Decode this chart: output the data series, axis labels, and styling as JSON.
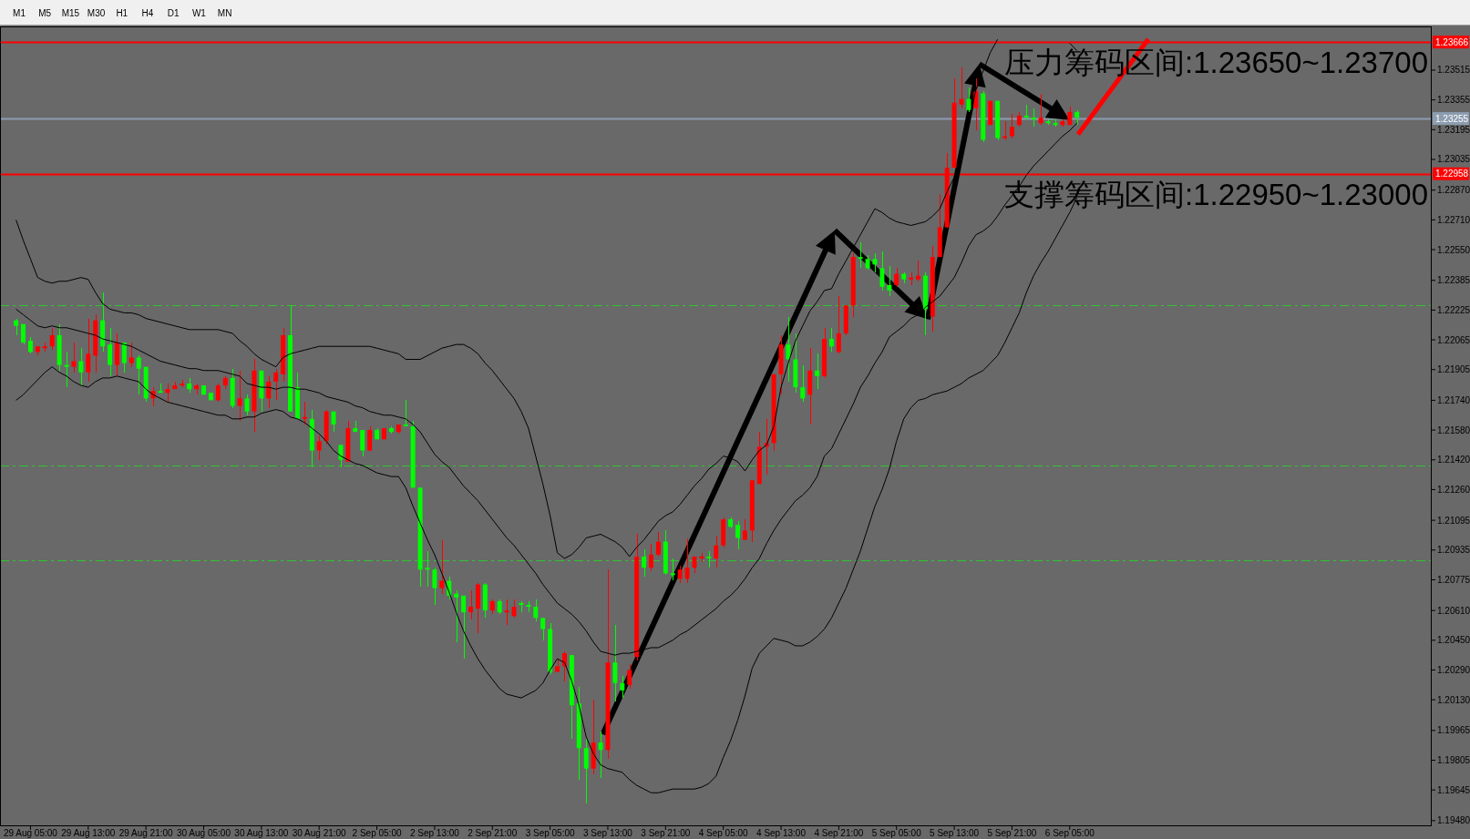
{
  "chart_data": {
    "type": "candlestick",
    "categories": [
      null,
      null,
      "29 Aug 05:00",
      null,
      null,
      null,
      null,
      null,
      null,
      null,
      "29 Aug 13:00",
      null,
      null,
      null,
      null,
      null,
      null,
      null,
      "29 Aug 21:00",
      null,
      null,
      null,
      null,
      null,
      null,
      null,
      "30 Aug 05:00",
      null,
      null,
      null,
      null,
      null,
      null,
      null,
      "30 Aug 13:00",
      null,
      null,
      null,
      null,
      null,
      null,
      null,
      "30 Aug 21:00",
      null,
      null,
      null,
      null,
      null,
      null,
      null,
      "2 Sep 05:00",
      null,
      null,
      null,
      null,
      null,
      null,
      null,
      "2 Sep 13:00",
      null,
      null,
      null,
      null,
      null,
      null,
      null,
      "2 Sep 21:00",
      null,
      null,
      null,
      null,
      null,
      null,
      null,
      "3 Sep 05:00",
      null,
      null,
      null,
      null,
      null,
      null,
      null,
      "3 Sep 13:00",
      null,
      null,
      null,
      null,
      null,
      null,
      null,
      "3 Sep 21:00",
      null,
      null,
      null,
      null,
      null,
      null,
      null,
      "4 Sep 05:00",
      null,
      null,
      null,
      null,
      null,
      null,
      null,
      "4 Sep 13:00",
      null,
      null,
      null,
      null,
      null,
      null,
      null,
      "4 Sep 21:00",
      null,
      null,
      null,
      null,
      null,
      null,
      null,
      "5 Sep 05:00",
      null,
      null,
      null,
      null,
      null,
      null,
      null,
      "5 Sep 13:00",
      null,
      null,
      null,
      null,
      null,
      null,
      null,
      "5 Sep 21:00",
      null,
      null,
      null,
      null,
      null,
      null,
      null,
      "6 Sep 05:00",
      null
    ],
    "ohlc": [
      [
        1.2217,
        1.2218,
        1.2209,
        1.2214
      ],
      [
        1.2215,
        1.2215,
        1.2204,
        1.2205
      ],
      [
        1.2206,
        1.2208,
        1.2199,
        1.22
      ],
      [
        1.22,
        1.2203,
        1.2198,
        1.2203
      ],
      [
        1.2202,
        1.2205,
        1.22,
        1.2203
      ],
      [
        1.2203,
        1.2213,
        1.2201,
        1.2209
      ],
      [
        1.2209,
        1.2215,
        1.219,
        1.2193
      ],
      [
        1.2193,
        1.22,
        1.2181,
        1.2192
      ],
      [
        1.2192,
        1.2205,
        1.2189,
        1.2195
      ],
      [
        1.2195,
        1.2202,
        1.2182,
        1.2189
      ],
      [
        1.2189,
        1.2218,
        1.2184,
        1.2199
      ],
      [
        1.2198,
        1.222,
        1.2189,
        1.2217
      ],
      [
        1.2217,
        1.2232,
        1.22,
        1.2203
      ],
      [
        1.2204,
        1.2213,
        1.2187,
        1.2193
      ],
      [
        1.2193,
        1.221,
        1.2187,
        1.2205
      ],
      [
        1.2205,
        1.2205,
        1.2189,
        1.2194
      ],
      [
        1.2194,
        1.2205,
        1.2192,
        1.2197
      ],
      [
        1.2197,
        1.2198,
        1.2177,
        1.2191
      ],
      [
        1.2192,
        1.2192,
        1.2173,
        1.2175
      ],
      [
        1.2175,
        1.2181,
        1.2171,
        1.2179
      ],
      [
        1.2179,
        1.2183,
        1.2178,
        1.2178
      ],
      [
        1.2178,
        1.2183,
        1.2173,
        1.218
      ],
      [
        1.218,
        1.2184,
        1.218,
        1.2182
      ],
      [
        1.2182,
        1.2185,
        1.2181,
        1.2183
      ],
      [
        1.2183,
        1.2186,
        1.2178,
        1.218
      ],
      [
        1.218,
        1.2183,
        1.2177,
        1.2182
      ],
      [
        1.2182,
        1.2182,
        1.2177,
        1.2177
      ],
      [
        1.2178,
        1.2178,
        1.2174,
        1.2174
      ],
      [
        1.2174,
        1.2183,
        1.2173,
        1.2182
      ],
      [
        1.2182,
        1.2187,
        1.218,
        1.2186
      ],
      [
        1.2186,
        1.2191,
        1.217,
        1.2171
      ],
      [
        1.2171,
        1.219,
        1.2163,
        1.2175
      ],
      [
        1.2175,
        1.2177,
        1.2166,
        1.2168
      ],
      [
        1.2168,
        1.2196,
        1.2157,
        1.219
      ],
      [
        1.219,
        1.219,
        1.2168,
        1.2175
      ],
      [
        1.2175,
        1.2187,
        1.217,
        1.2184
      ],
      [
        1.2184,
        1.2191,
        1.2174,
        1.2189
      ],
      [
        1.2188,
        1.2213,
        1.2184,
        1.2209
      ],
      [
        1.2209,
        1.2225,
        1.2168,
        1.2168
      ],
      [
        1.2181,
        1.2189,
        1.2164,
        1.2164
      ],
      [
        1.2164,
        1.2173,
        1.2161,
        1.2165
      ],
      [
        1.2164,
        1.2169,
        1.2138,
        1.2147
      ],
      [
        1.2147,
        1.2155,
        1.2142,
        1.2152
      ],
      [
        1.2152,
        1.2169,
        1.215,
        1.2168
      ],
      [
        1.2168,
        1.2168,
        1.2157,
        1.2161
      ],
      [
        1.215,
        1.215,
        1.2138,
        1.2142
      ],
      [
        1.2141,
        1.2163,
        1.2141,
        1.2159
      ],
      [
        1.2159,
        1.2163,
        1.2157,
        1.2157
      ],
      [
        1.2158,
        1.2158,
        1.2144,
        1.2147
      ],
      [
        1.2147,
        1.216,
        1.2147,
        1.2158
      ],
      [
        1.2158,
        1.2159,
        1.2153,
        1.2153
      ],
      [
        1.2153,
        1.2159,
        1.2153,
        1.2159
      ],
      [
        1.2159,
        1.216,
        1.2156,
        1.2157
      ],
      [
        1.2157,
        1.2161,
        1.2156,
        1.2161
      ],
      [
        1.2161,
        1.2174,
        1.216,
        1.216
      ],
      [
        1.216,
        1.2163,
        1.2127,
        1.2127
      ],
      [
        1.2127,
        1.2127,
        1.2074,
        1.2083
      ],
      [
        1.2084,
        1.2093,
        1.2074,
        1.2083
      ],
      [
        1.2083,
        1.2084,
        1.2064,
        1.2073
      ],
      [
        1.2073,
        1.2099,
        1.207,
        1.2077
      ],
      [
        1.2077,
        1.2079,
        1.2067,
        1.2069
      ],
      [
        1.207,
        1.2072,
        1.2044,
        1.2068
      ],
      [
        1.2069,
        1.2069,
        1.2035,
        1.206
      ],
      [
        1.206,
        1.2072,
        1.2056,
        1.2063
      ],
      [
        1.2062,
        1.2076,
        1.2049,
        1.2075
      ],
      [
        1.2075,
        1.2076,
        1.2057,
        1.2061
      ],
      [
        1.2061,
        1.2067,
        1.2059,
        1.2066
      ],
      [
        1.2066,
        1.2067,
        1.2059,
        1.206
      ],
      [
        1.206,
        1.2067,
        1.2053,
        1.2061
      ],
      [
        1.2058,
        1.2067,
        1.2057,
        1.2063
      ],
      [
        1.2065,
        1.2066,
        1.206,
        1.2064
      ],
      [
        1.2064,
        1.2066,
        1.206,
        1.2063
      ],
      [
        1.2063,
        1.2067,
        1.2055,
        1.2057
      ],
      [
        1.2057,
        1.2057,
        1.2045,
        1.2051
      ],
      [
        1.2051,
        1.2054,
        1.2027,
        1.2028
      ],
      [
        1.2028,
        1.2035,
        1.2028,
        1.2031
      ],
      [
        1.2031,
        1.2039,
        1.2023,
        1.2038
      ],
      [
        1.2037,
        1.2037,
        1.1992,
        1.201
      ],
      [
        1.2011,
        1.202,
        1.197,
        1.1987
      ],
      [
        1.1987,
        1.1992,
        1.1957,
        1.1976
      ],
      [
        1.1976,
        1.2013,
        1.1973,
        1.199
      ],
      [
        1.199,
        1.1996,
        1.1971,
        1.1986
      ],
      [
        1.1986,
        1.2083,
        1.1981,
        1.2033
      ],
      [
        1.2033,
        1.2053,
        1.2012,
        1.2022
      ],
      [
        1.2022,
        1.2026,
        1.2014,
        1.2018
      ],
      [
        1.2021,
        1.2032,
        1.2019,
        1.2029
      ],
      [
        1.2036,
        1.2102,
        1.2034,
        1.209
      ],
      [
        1.209,
        1.2094,
        1.2079,
        1.2084
      ],
      [
        1.2084,
        1.2097,
        1.2082,
        1.2091
      ],
      [
        1.2091,
        1.2103,
        1.209,
        1.2098
      ],
      [
        1.2098,
        1.2104,
        1.208,
        1.2081
      ],
      [
        1.2081,
        1.2089,
        1.2077,
        1.208
      ],
      [
        1.2078,
        1.2085,
        1.2076,
        1.2083
      ],
      [
        1.2078,
        1.21,
        1.2076,
        1.2084
      ],
      [
        1.2084,
        1.209,
        1.2081,
        1.209
      ],
      [
        1.2089,
        1.2092,
        1.2087,
        1.209
      ],
      [
        1.209,
        1.2093,
        1.2084,
        1.2089
      ],
      [
        1.2089,
        1.2101,
        1.2084,
        1.2096
      ],
      [
        1.2096,
        1.2111,
        1.2095,
        1.211
      ],
      [
        1.211,
        1.2111,
        1.2105,
        1.2106
      ],
      [
        1.2107,
        1.2109,
        1.2094,
        1.21
      ],
      [
        1.2099,
        1.211,
        1.2099,
        1.2104
      ],
      [
        1.2104,
        1.2131,
        1.2098,
        1.2131
      ],
      [
        1.2129,
        1.2157,
        1.2129,
        1.2149
      ],
      [
        1.2149,
        1.2164,
        1.2134,
        1.2151
      ],
      [
        1.2151,
        1.2188,
        1.2147,
        1.2188
      ],
      [
        1.2188,
        1.2209,
        1.2177,
        1.2204
      ],
      [
        1.2204,
        1.2219,
        1.2184,
        1.2196
      ],
      [
        1.2196,
        1.221,
        1.2178,
        1.2181
      ],
      [
        1.2181,
        1.2193,
        1.2173,
        1.2175
      ],
      [
        1.2177,
        1.2202,
        1.2161,
        1.219
      ],
      [
        1.219,
        1.2199,
        1.218,
        1.2187
      ],
      [
        1.2187,
        1.2213,
        1.2186,
        1.2207
      ],
      [
        1.2207,
        1.2213,
        1.22,
        1.2203
      ],
      [
        1.22,
        1.223,
        1.2199,
        1.221
      ],
      [
        1.221,
        1.2225,
        1.2209,
        1.2225
      ],
      [
        1.2225,
        1.2253,
        1.2219,
        1.2251
      ],
      [
        1.2251,
        1.2259,
        1.2245,
        1.225
      ],
      [
        1.225,
        1.2252,
        1.2244,
        1.2245
      ],
      [
        1.225,
        1.2253,
        1.2243,
        1.2247
      ],
      [
        1.2245,
        1.2254,
        1.2233,
        1.2235
      ],
      [
        1.2236,
        1.2246,
        1.223,
        1.2233
      ],
      [
        1.2236,
        1.2245,
        1.2235,
        1.2242
      ],
      [
        1.2242,
        1.2243,
        1.2237,
        1.2239
      ],
      [
        1.2239,
        1.2243,
        1.2236,
        1.224
      ],
      [
        1.2239,
        1.2249,
        1.2238,
        1.2241
      ],
      [
        1.2241,
        1.2243,
        1.2209,
        1.2223
      ],
      [
        1.2219,
        1.2257,
        1.2211,
        1.2251
      ],
      [
        1.2251,
        1.2285,
        1.2251,
        1.2267
      ],
      [
        1.2267,
        1.2307,
        1.2267,
        1.2299
      ],
      [
        1.2299,
        1.2347,
        1.2299,
        1.2334
      ],
      [
        1.2333,
        1.2353,
        1.2331,
        1.2336
      ],
      [
        1.2336,
        1.2342,
        1.2329,
        1.233
      ],
      [
        1.2331,
        1.2347,
        1.2319,
        1.234
      ],
      [
        1.2339,
        1.234,
        1.2313,
        1.2314
      ],
      [
        1.2322,
        1.2335,
        1.2322,
        1.2335
      ],
      [
        1.2335,
        1.2335,
        1.2314,
        1.2315
      ],
      [
        1.2315,
        1.2324,
        1.2314,
        1.2316
      ],
      [
        1.2316,
        1.2328,
        1.2315,
        1.2321
      ],
      [
        1.2322,
        1.2329,
        1.2321,
        1.2327
      ],
      [
        1.2327,
        1.2333,
        1.2325,
        1.2326
      ],
      [
        1.2326,
        1.2331,
        1.2321,
        1.2325
      ],
      [
        1.2323,
        1.2339,
        1.2322,
        1.2326
      ],
      [
        1.2324,
        1.2325,
        1.2322,
        1.2323
      ],
      [
        1.2323,
        1.2325,
        1.2321,
        1.2322
      ],
      [
        1.2322,
        1.2325,
        1.2321,
        1.2324
      ],
      [
        1.2322,
        1.2332,
        1.2322,
        1.2329
      ],
      [
        1.2329,
        1.233,
        1.2322,
        1.2326
      ]
    ],
    "colors": [
      "#00ff00",
      "#00ff00",
      "#00ff00",
      "#ff0000",
      "#ff0000",
      "#ff0000",
      "#00ff00",
      "#00ff00",
      "#ff0000",
      "#00ff00",
      "#ff0000",
      "#ff0000",
      "#00ff00",
      "#00ff00",
      "#ff0000",
      "#00ff00",
      "#ff0000",
      "#00ff00",
      "#00ff00",
      "#ff0000",
      "#00ff00",
      "#ff0000",
      "#ff0000",
      "#ff0000",
      "#00ff00",
      "#ff0000",
      "#00ff00",
      "#00ff00",
      "#ff0000",
      "#ff0000",
      "#00ff00",
      "#ff0000",
      "#00ff00",
      "#ff0000",
      "#00ff00",
      "#ff0000",
      "#ff0000",
      "#ff0000",
      "#00ff00",
      "#00ff00",
      "#ff0000",
      "#00ff00",
      "#ff0000",
      "#ff0000",
      "#00ff00",
      "#00ff00",
      "#ff0000",
      "#00ff00",
      "#00ff00",
      "#ff0000",
      "#00ff00",
      "#ff0000",
      "#00ff00",
      "#ff0000",
      "#00ff00",
      "#00ff00",
      "#00ff00",
      "#00ff00",
      "#00ff00",
      "#ff0000",
      "#00ff00",
      "#00ff00",
      "#00ff00",
      "#ff0000",
      "#ff0000",
      "#00ff00",
      "#ff0000",
      "#00ff00",
      "#ff0000",
      "#ff0000",
      "#00ff00",
      "#00ff00",
      "#00ff00",
      "#00ff00",
      "#00ff00",
      "#ff0000",
      "#ff0000",
      "#00ff00",
      "#00ff00",
      "#00ff00",
      "#ff0000",
      "#00ff00",
      "#ff0000",
      "#00ff00",
      "#00ff00",
      "#ff0000",
      "#ff0000",
      "#00ff00",
      "#ff0000",
      "#ff0000",
      "#00ff00",
      "#00ff00",
      "#ff0000",
      "#ff0000",
      "#ff0000",
      "#ff0000",
      "#00ff00",
      "#ff0000",
      "#ff0000",
      "#00ff00",
      "#00ff00",
      "#ff0000",
      "#ff0000",
      "#ff0000",
      "#ff0000",
      "#ff0000",
      "#ff0000",
      "#00ff00",
      "#00ff00",
      "#00ff00",
      "#ff0000",
      "#00ff00",
      "#ff0000",
      "#00ff00",
      "#ff0000",
      "#ff0000",
      "#ff0000",
      "#00ff00",
      "#00ff00",
      "#00ff00",
      "#00ff00",
      "#00ff00",
      "#ff0000",
      "#00ff00",
      "#ff0000",
      "#ff0000",
      "#00ff00",
      "#ff0000",
      "#ff0000",
      "#ff0000",
      "#ff0000",
      "#ff0000",
      "#00ff00",
      "#ff0000",
      "#00ff00",
      "#ff0000",
      "#00ff00",
      "#ff0000",
      "#ff0000",
      "#ff0000",
      "#00ff00",
      "#00ff00",
      "#ff0000",
      "#00ff00",
      "#00ff00",
      "#ff0000",
      "#ff0000",
      "#00ff00"
    ],
    "series": [
      {
        "type": "line",
        "color": "#000000",
        "values": [
          1.2271,
          1.226,
          1.225,
          1.224,
          1.2238,
          1.2237,
          1.2238,
          1.2238,
          1.2239,
          1.224,
          1.2239,
          1.2232,
          1.2226,
          1.2223,
          1.2222,
          1.2221,
          1.2221,
          1.222,
          1.2218,
          1.2217,
          1.2216,
          1.2215,
          1.2214,
          1.2213,
          1.2212,
          1.2212,
          1.2212,
          1.2212,
          1.2212,
          1.2211,
          1.221,
          1.2206,
          1.2203,
          1.2199,
          1.2196,
          1.2194,
          1.2192,
          1.2197,
          1.2199,
          1.22,
          1.2201,
          1.2202,
          1.2203,
          1.2203,
          1.2203,
          1.2203,
          1.2203,
          1.2203,
          1.2203,
          1.2203,
          1.2202,
          1.2201,
          1.22,
          1.2199,
          1.2196,
          1.2196,
          1.2196,
          1.2198,
          1.22,
          1.2202,
          1.2203,
          1.2204,
          1.2204,
          1.2202,
          1.2199,
          1.2194,
          1.219,
          1.2185,
          1.218,
          1.2175,
          1.2168,
          1.2159,
          1.2144,
          1.2129,
          1.2112,
          1.2092,
          1.2089,
          1.2091,
          1.2095,
          1.21,
          1.2101,
          1.2102,
          1.21,
          1.2098,
          1.2095,
          1.209,
          1.2095,
          1.2099,
          1.2104,
          1.2109,
          1.2112,
          1.2114,
          1.2118,
          1.2123,
          1.2128,
          1.2132,
          1.2137,
          1.214,
          1.2144,
          1.2143,
          1.2141,
          1.2136,
          1.2142,
          1.2147,
          1.215,
          1.216,
          1.2181,
          1.2194,
          1.2206,
          1.2214,
          1.2222,
          1.2227,
          1.2233,
          1.2234,
          1.2242,
          1.2249,
          1.2256,
          1.2263,
          1.227,
          1.2277,
          1.2275,
          1.2272,
          1.227,
          1.2269,
          1.2268,
          1.2269,
          1.227,
          1.2273,
          1.2277,
          1.2286,
          1.2294,
          1.2307,
          1.2323,
          1.2341,
          1.2351,
          1.2361,
          1.2368,
          null,
          null,
          null,
          null,
          null,
          null,
          null,
          null,
          null,
          1.2366,
          1.2362
        ]
      },
      {
        "type": "line",
        "color": "#000000",
        "values": [
          1.2223,
          1.222,
          1.2217,
          1.2214,
          1.2213,
          1.2214,
          1.2213,
          1.2213,
          1.2212,
          1.2211,
          1.221,
          1.2209,
          1.2207,
          1.2206,
          1.2205,
          1.2204,
          1.2203,
          1.2201,
          1.2199,
          1.2197,
          1.2195,
          1.2194,
          1.2193,
          1.2192,
          1.2191,
          1.2191,
          1.219,
          1.219,
          1.219,
          1.2189,
          1.2188,
          1.2187,
          1.2183,
          1.2182,
          1.2181,
          1.2181,
          1.218,
          1.2181,
          1.2181,
          1.218,
          1.218,
          1.2179,
          1.2178,
          1.2176,
          1.2175,
          1.2174,
          1.2173,
          1.2171,
          1.217,
          1.2168,
          1.2167,
          1.2166,
          1.2166,
          1.2165,
          1.2164,
          1.2161,
          1.2157,
          1.2151,
          1.2145,
          1.2141,
          1.2138,
          1.2133,
          1.2128,
          1.2124,
          1.212,
          1.2115,
          1.211,
          1.2105,
          1.21,
          1.2096,
          1.2091,
          1.2086,
          1.2081,
          1.2075,
          1.207,
          1.2065,
          1.2062,
          1.2059,
          1.2055,
          1.205,
          1.2044,
          1.2039,
          1.2038,
          1.2037,
          1.2038,
          1.2038,
          1.2039,
          1.204,
          1.2041,
          1.2041,
          1.2043,
          1.2045,
          1.2048,
          1.205,
          1.2053,
          1.2056,
          1.2059,
          1.2062,
          1.2066,
          1.2069,
          1.2073,
          1.2078,
          1.2084,
          1.2089,
          1.2097,
          1.2104,
          1.211,
          1.2115,
          1.212,
          1.2123,
          1.2127,
          1.2133,
          1.2144,
          1.2148,
          1.2156,
          1.2164,
          1.2172,
          1.2181,
          1.2187,
          1.2194,
          1.22,
          1.2208,
          1.2211,
          1.2214,
          1.2218,
          1.222,
          1.2224,
          1.2227,
          1.223,
          1.2235,
          1.224,
          1.2248,
          1.2257,
          1.2263,
          1.2265,
          1.2268,
          1.2273,
          1.2279,
          1.2284,
          1.2289,
          1.2295,
          1.23,
          1.2304,
          1.2308,
          1.2312,
          1.2316,
          1.2319,
          1.2323
        ]
      },
      {
        "type": "line",
        "color": "#000000",
        "values": [
          1.2174,
          1.2177,
          1.2181,
          1.2185,
          1.2189,
          1.2192,
          1.2189,
          1.2187,
          1.2184,
          1.2182,
          1.2181,
          1.2184,
          1.2186,
          1.2186,
          1.2187,
          1.2186,
          1.2185,
          1.2184,
          1.218,
          1.2177,
          1.2175,
          1.2173,
          1.2172,
          1.2171,
          1.217,
          1.2169,
          1.2168,
          1.2167,
          1.2166,
          1.2166,
          1.2164,
          1.2164,
          1.2165,
          1.2165,
          1.2167,
          1.2168,
          1.2169,
          1.2168,
          1.2165,
          1.2164,
          1.2162,
          1.2159,
          1.2156,
          1.2152,
          1.2147,
          1.2144,
          1.2142,
          1.214,
          1.2139,
          1.2137,
          1.2135,
          1.2134,
          1.2133,
          1.2133,
          1.2127,
          1.2117,
          1.2108,
          1.2099,
          1.2091,
          1.2081,
          1.2071,
          1.206,
          1.205,
          1.2042,
          1.2035,
          1.2029,
          1.2024,
          1.2019,
          1.2016,
          1.2015,
          1.2014,
          1.2016,
          1.2018,
          1.2022,
          1.2029,
          1.2035,
          1.2033,
          1.2023,
          1.201,
          1.1993,
          1.1984,
          1.1978,
          1.1976,
          1.1975,
          1.1974,
          1.197,
          1.1967,
          1.1965,
          1.1963,
          1.1963,
          1.1964,
          1.1965,
          1.1965,
          1.1965,
          1.1965,
          1.1966,
          1.1968,
          1.1972,
          1.1982,
          1.1991,
          1.2002,
          1.2015,
          1.203,
          1.2038,
          1.2042,
          1.2046,
          1.2045,
          1.2044,
          1.2042,
          1.2042,
          1.2044,
          1.2047,
          1.2051,
          1.2057,
          1.2065,
          1.2073,
          1.2083,
          1.2093,
          1.2105,
          1.2117,
          1.2126,
          1.2137,
          1.2152,
          1.2164,
          1.217,
          1.2174,
          1.2175,
          1.2177,
          1.2178,
          1.2179,
          1.2181,
          1.2183,
          1.2186,
          1.2188,
          1.219,
          1.2194,
          1.2198,
          1.2205,
          1.2213,
          1.2221,
          1.2232,
          1.2241,
          1.2248,
          1.2254,
          1.2261,
          1.2268,
          1.2275,
          1.2283
        ]
      }
    ],
    "ylim": [
      1.1945,
      1.2375
    ],
    "yticks": [
      1.23515,
      1.23355,
      1.23195,
      1.23035,
      {
        "value": 1.2287,
        "label": "1.22870"
      },
      {
        "value": 1.2271,
        "label": "1.22710"
      },
      {
        "value": 1.2255,
        "label": "1.22550"
      },
      1.22385,
      1.22225,
      1.22065,
      1.21905,
      {
        "value": 1.2174,
        "label": "1.21740"
      },
      {
        "value": 1.2158,
        "label": "1.21580"
      },
      {
        "value": 1.2142,
        "label": "1.21420"
      },
      {
        "value": 1.2126,
        "label": "1.21260"
      },
      1.21095,
      1.20935,
      1.20775,
      {
        "value": 1.2061,
        "label": "1.20610"
      },
      {
        "value": 1.2045,
        "label": "1.20450"
      },
      {
        "value": 1.2029,
        "label": "1.20290"
      },
      {
        "value": 1.2013,
        "label": "1.20130"
      },
      1.19965,
      1.19805,
      1.19645,
      {
        "value": 1.1948,
        "label": "1.19480"
      }
    ],
    "ref_lines": [
      {
        "axis": "y",
        "value": 1.23666,
        "label": "1.23666",
        "color": "#ff0000"
      },
      {
        "axis": "y",
        "value": 1.22958,
        "label": "1.22958",
        "color": "#ff0000"
      },
      {
        "axis": "y",
        "value": 1.23255,
        "label": "1.23255",
        "color": "#8c9db0"
      },
      {
        "axis": "y",
        "value": 1.2225,
        "color": "#2ec52e",
        "line_style": "dashed"
      },
      {
        "axis": "y",
        "value": 1.2139,
        "color": "#2ec52e",
        "line_style": "dashed"
      },
      {
        "axis": "y",
        "value": 1.2088,
        "color": "#2ec52e",
        "line_style": "dashed"
      }
    ],
    "annotations": [
      "M1",
      "M5",
      "M15",
      "M30",
      "H1",
      "H4",
      "D1",
      "W1",
      "MN",
      {
        "text": "压力筹码区间:1.23650~1.23700",
        "y": 1.23666
      },
      {
        "text": "支撑筹码区间:1.22950~1.23000",
        "y": 1.22958
      }
    ]
  }
}
